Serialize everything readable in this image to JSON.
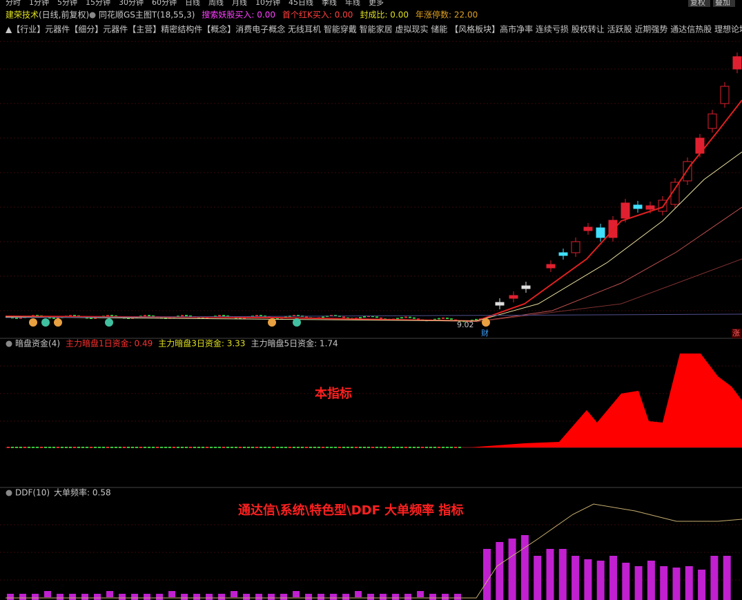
{
  "toolbar": {
    "periods": [
      "分时",
      "1分钟",
      "5分钟",
      "15分钟",
      "30分钟",
      "60分钟",
      "日线",
      "周线",
      "月线",
      "10分钟",
      "45日线",
      "季线",
      "年线",
      "更多"
    ],
    "right": [
      "复权",
      "叠加"
    ]
  },
  "header": {
    "stock": "建荣技术",
    "period": "(日线,前复权)",
    "indicator": "同花顺GS主图T(18,55,3)",
    "items": [
      "搜索妖股买入: 0.00",
      "首个红K买入: 0.00",
      "封成比: 0.00",
      "年涨停数: 22.00"
    ]
  },
  "concepts": "▲【行业】元器件【细分】元器件【主营】精密结构件【概念】消费电子概念 无线耳机 智能穿戴 智能家居 虚拟现实 储能 【风格板块】高市净率 连续亏损 股权转让 活跃股 近期强势 通达信热股 理想论坛泗阳徐",
  "main_panel": {
    "low_label": "9.02",
    "marker_cai": "财",
    "marker_zhang": "涨"
  },
  "panel2": {
    "name": "暗盘资金(4)",
    "items": [
      "主力暗盘1日资金: 0.49",
      "主力暗盘3日资金: 3.33",
      "主力暗盘5日资金: 1.74"
    ],
    "annotation": "本指标"
  },
  "panel3": {
    "name": "DDF(10)",
    "items": [
      "大单频率: 0.58"
    ],
    "annotation": "通达信\\系统\\特色型\\DDF  大单频率  指标"
  }
}
